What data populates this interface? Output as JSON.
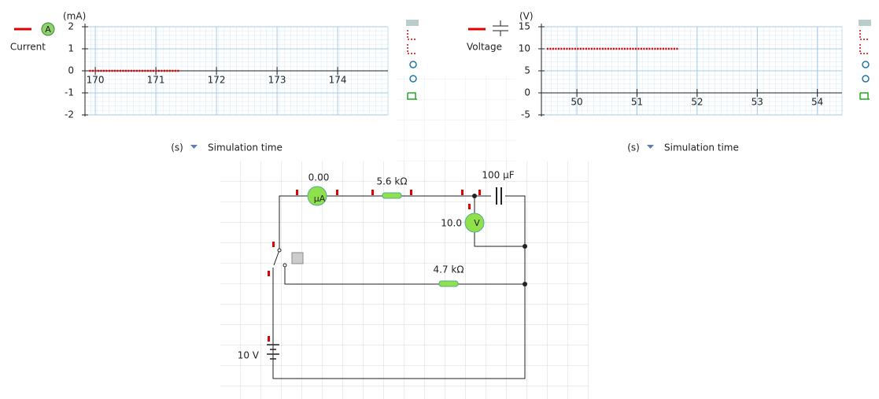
{
  "current_chart": {
    "type": "line",
    "legend_icon": "A",
    "unit": "(mA)",
    "name": "Current",
    "x_unit": "(s)",
    "x_label": "Simulation time",
    "xlim": [
      169.83,
      174.83
    ],
    "xticks": [
      170,
      171,
      172,
      173,
      174
    ],
    "ylim": [
      -2,
      2
    ],
    "yticks": [
      2,
      1,
      0,
      -1,
      -2
    ],
    "series": [
      {
        "color": "#e00000",
        "x": [
          169.9,
          170.0,
          170.1,
          170.2,
          170.3,
          170.4,
          170.5,
          170.6,
          170.7,
          170.8,
          170.9,
          171.0,
          171.1,
          171.2,
          171.3,
          171.4
        ],
        "values": [
          0,
          0,
          0,
          0,
          0,
          0,
          0,
          0,
          0,
          0,
          0,
          0,
          0,
          0,
          0,
          0
        ]
      }
    ]
  },
  "voltage_chart": {
    "type": "line",
    "unit": "(V)",
    "name": "Voltage",
    "x_unit": "(s)",
    "x_label": "Simulation time",
    "xlim": [
      49.41,
      54.41
    ],
    "xticks": [
      50,
      51,
      52,
      53,
      54
    ],
    "ylim": [
      -5,
      15
    ],
    "yticks": [
      15,
      10,
      5,
      0,
      -5
    ],
    "series": [
      {
        "color": "#e00000",
        "x": [
          49.5,
          49.6,
          49.7,
          49.8,
          49.9,
          50.0,
          50.1,
          50.2,
          50.3,
          50.4,
          50.5,
          50.6,
          50.7,
          50.8,
          50.9,
          51.0,
          51.1,
          51.2,
          51.3,
          51.4,
          51.5,
          51.6,
          51.7
        ],
        "values": [
          10,
          10,
          10,
          10,
          10,
          10,
          10,
          10,
          10,
          10,
          10,
          10,
          10,
          10,
          10,
          10,
          10,
          10,
          10,
          10,
          10,
          10,
          10
        ]
      }
    ]
  },
  "circuit": {
    "ammeter": {
      "reading": "0.00",
      "unit": "μA"
    },
    "resistor_1": "5.6 kΩ",
    "capacitor": "100 μF",
    "voltmeter": {
      "reading": "10.0",
      "unit": "V"
    },
    "resistor_2": "4.7 kΩ",
    "battery": "10 V"
  }
}
